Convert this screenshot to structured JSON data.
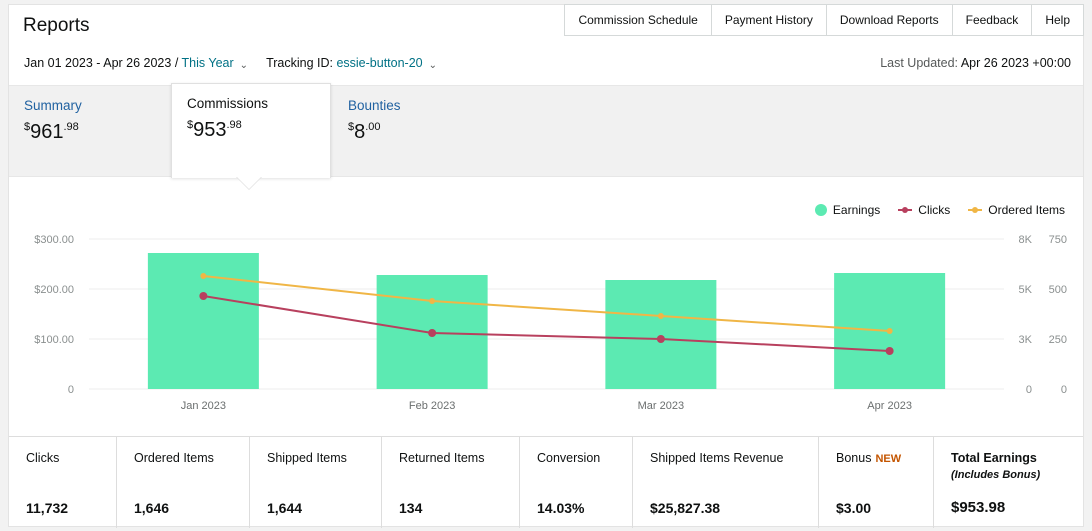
{
  "header": {
    "title": "Reports",
    "nav": [
      "Commission Schedule",
      "Payment History",
      "Download Reports",
      "Feedback",
      "Help"
    ]
  },
  "filters": {
    "date_range": "Jan 01 2023 - Apr 26 2023",
    "separator": " / ",
    "period": "This Year",
    "tracking_label": "Tracking ID: ",
    "tracking_id": "essie-button-20",
    "last_updated_label": "Last Updated: ",
    "last_updated_value": "Apr 26 2023 +00:00"
  },
  "tabs": [
    {
      "label": "Summary",
      "currency": "$",
      "whole": "961",
      "cents": ".98"
    },
    {
      "label": "Commissions",
      "currency": "$",
      "whole": "953",
      "cents": ".98"
    },
    {
      "label": "Bounties",
      "currency": "$",
      "whole": "8",
      "cents": ".00"
    }
  ],
  "chart_data": {
    "type": "bar",
    "categories": [
      "Jan 2023",
      "Feb 2023",
      "Mar 2023",
      "Apr 2023"
    ],
    "legend_position": "top-right",
    "grid": true,
    "series": [
      {
        "name": "Earnings",
        "type": "bar",
        "axis": "left",
        "color": "#5ceab2",
        "values": [
          272,
          228,
          218,
          232
        ]
      },
      {
        "name": "Clicks",
        "type": "line",
        "axis": "right1",
        "color": "#b8405e",
        "values": [
          4650,
          2800,
          2500,
          1900
        ]
      },
      {
        "name": "Ordered Items",
        "type": "line",
        "axis": "right2",
        "color": "#f0b646",
        "values": [
          565,
          440,
          365,
          290
        ]
      }
    ],
    "axes": {
      "left": {
        "min": 0,
        "max": 300,
        "ticks": [
          0,
          100,
          200,
          300
        ],
        "tick_labels": [
          "0",
          "$100.00",
          "$200.00",
          "$300.00"
        ]
      },
      "right1": {
        "min": 0,
        "max": 7500,
        "ticks": [
          0,
          2500,
          5000,
          7500
        ],
        "tick_labels": [
          "0",
          "3K",
          "5K",
          "8K"
        ]
      },
      "right2": {
        "min": 0,
        "max": 750,
        "ticks": [
          0,
          250,
          500,
          750
        ],
        "tick_labels": [
          "0",
          "250",
          "500",
          "750"
        ]
      }
    }
  },
  "stats": [
    {
      "label": "Clicks",
      "value": "11,732"
    },
    {
      "label": "Ordered Items",
      "value": "1,646"
    },
    {
      "label": "Shipped Items",
      "value": "1,644"
    },
    {
      "label": "Returned Items",
      "value": "134"
    },
    {
      "label": "Conversion",
      "value": "14.03%"
    },
    {
      "label": "Shipped Items Revenue",
      "value": "$25,827.38"
    },
    {
      "label": "Bonus",
      "badge": "NEW",
      "value": "$3.00"
    },
    {
      "label": "Total Earnings",
      "sublabel": "(Includes Bonus)",
      "value": "$953.98"
    }
  ]
}
